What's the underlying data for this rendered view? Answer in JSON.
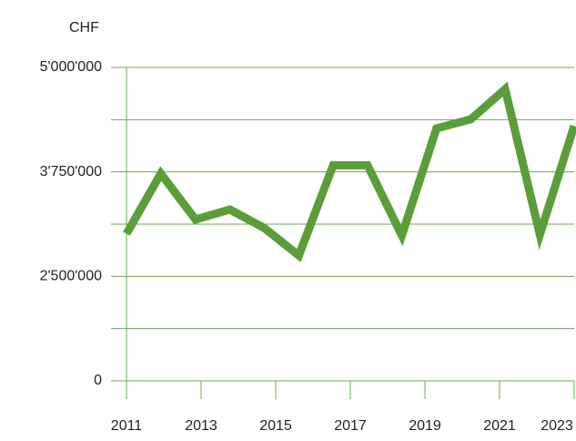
{
  "chart_data": {
    "type": "line",
    "y_unit_label": "CHF",
    "x": [
      2011,
      2011.92,
      2012.85,
      2013.77,
      2014.69,
      2015.62,
      2016.54,
      2017.46,
      2018.38,
      2019.31,
      2020.23,
      2021.15,
      2022.08,
      2023
    ],
    "series": [
      {
        "color": "#5a9e3a",
        "values": [
          3010000,
          3730000,
          3180000,
          3300000,
          3080000,
          2750000,
          3830000,
          3830000,
          2990000,
          4270000,
          4380000,
          4740000,
          3000000,
          4300000
        ]
      }
    ],
    "xlim": [
      2011,
      2023
    ],
    "xticks": [
      2011,
      2013,
      2015,
      2017,
      2019,
      2021,
      2023
    ],
    "ylim": [
      0,
      5000000
    ],
    "yticks": [
      0,
      {
        "value": 2500000,
        "label": "2'500'000"
      },
      {
        "value": 3750000,
        "label": "3'750'000"
      },
      {
        "value": 5000000,
        "label": "5'000'000"
      }
    ],
    "grid": true
  }
}
